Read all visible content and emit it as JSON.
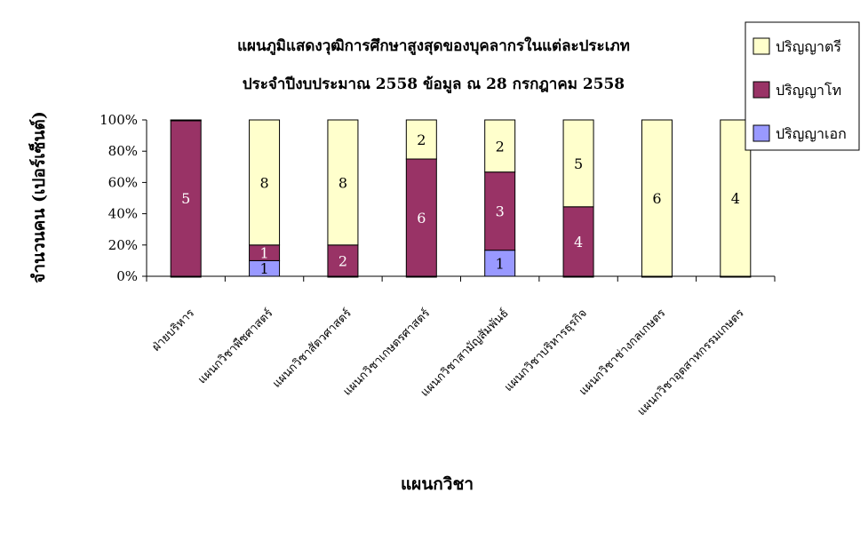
{
  "chart_data": {
    "type": "bar",
    "stacked": "percent",
    "title": "แผนภูมิแสดงวุฒิการศึกษาสูงสุดของบุคลากรในแต่ละประเภท",
    "subtitle": "ประจำปีงบประมาณ 2558 ข้อมูล ณ 28 กรกฎาคม 2558",
    "xlabel": "แผนกวิชา",
    "ylabel": "จำนวนคน (เปอร์เซ็นต์)",
    "ylim": [
      0,
      100
    ],
    "yticks": [
      "0%",
      "20%",
      "40%",
      "60%",
      "80%",
      "100%"
    ],
    "grid": false,
    "legend_position": "top-right",
    "categories": [
      "ฝ่ายบริหาร",
      "แผนกวิชาพืชศาสตร์",
      "แผนกวิชาสัตวศาสตร์",
      "แผนกวิชาเกษตรศาสตร์",
      "แผนกวิชาสามัญสัมพันธ์",
      "แผนกวิชาบริหารธุรกิจ",
      "แผนกวิชาช่างกลเกษตร",
      "แผนกวิชาอุตสาหกรรมเกษตร"
    ],
    "series": [
      {
        "name": "ปริญญาเอก",
        "color": "#9999ff",
        "text_color": "#000000",
        "values": [
          0,
          1,
          0,
          0,
          1,
          0,
          0,
          0
        ]
      },
      {
        "name": "ปริญญาโท",
        "color": "#993366",
        "text_color": "#ffffff",
        "values": [
          5,
          1,
          2,
          6,
          3,
          4,
          0,
          0
        ]
      },
      {
        "name": "ปริญญาตรี",
        "color": "#ffffcc",
        "text_color": "#000000",
        "values": [
          0,
          8,
          8,
          2,
          2,
          5,
          6,
          4
        ]
      }
    ],
    "legend_order": [
      "ปริญญาตรี",
      "ปริญญาโท",
      "ปริญญาเอก"
    ]
  }
}
